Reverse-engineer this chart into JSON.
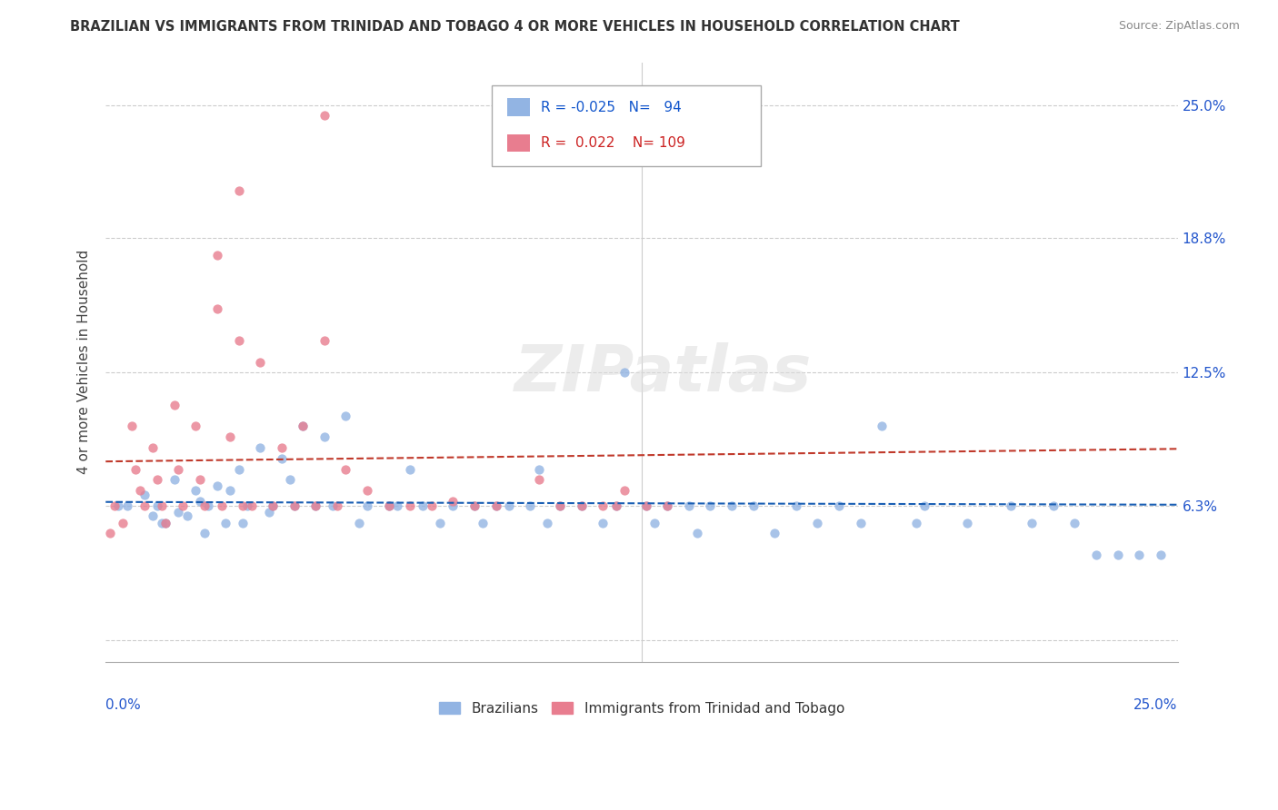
{
  "title": "BRAZILIAN VS IMMIGRANTS FROM TRINIDAD AND TOBAGO 4 OR MORE VEHICLES IN HOUSEHOLD CORRELATION CHART",
  "source": "Source: ZipAtlas.com",
  "ylabel": "4 or more Vehicles in Household",
  "yticks": [
    0.0,
    0.063,
    0.125,
    0.188,
    0.25
  ],
  "ytick_labels": [
    "",
    "6.3%",
    "12.5%",
    "18.8%",
    "25.0%"
  ],
  "xlim": [
    0.0,
    0.25
  ],
  "ylim": [
    -0.01,
    0.27
  ],
  "legend_r_blue": "-0.025",
  "legend_n_blue": "94",
  "legend_r_pink": "0.022",
  "legend_n_pink": "109",
  "blue_color": "#92b4e3",
  "pink_color": "#e87d8f",
  "trend_blue_color": "#1a5fb4",
  "trend_pink_color": "#c0392b",
  "watermark": "ZIPatlas",
  "blue_scatter_x": [
    0.003,
    0.005,
    0.009,
    0.011,
    0.013,
    0.012,
    0.016,
    0.017,
    0.014,
    0.021,
    0.022,
    0.019,
    0.023,
    0.026,
    0.024,
    0.028,
    0.031,
    0.029,
    0.033,
    0.032,
    0.036,
    0.038,
    0.041,
    0.043,
    0.039,
    0.046,
    0.044,
    0.051,
    0.049,
    0.056,
    0.053,
    0.061,
    0.059,
    0.066,
    0.071,
    0.068,
    0.074,
    0.081,
    0.078,
    0.086,
    0.091,
    0.088,
    0.094,
    0.101,
    0.099,
    0.103,
    0.106,
    0.111,
    0.116,
    0.121,
    0.119,
    0.126,
    0.131,
    0.128,
    0.136,
    0.141,
    0.138,
    0.146,
    0.151,
    0.156,
    0.161,
    0.166,
    0.171,
    0.176,
    0.181,
    0.191,
    0.189,
    0.201,
    0.211,
    0.216,
    0.221,
    0.226,
    0.231,
    0.236,
    0.241,
    0.246
  ],
  "blue_scatter_y": [
    0.063,
    0.063,
    0.068,
    0.058,
    0.055,
    0.063,
    0.075,
    0.06,
    0.055,
    0.07,
    0.065,
    0.058,
    0.05,
    0.072,
    0.063,
    0.055,
    0.08,
    0.07,
    0.063,
    0.055,
    0.09,
    0.06,
    0.085,
    0.075,
    0.063,
    0.1,
    0.063,
    0.095,
    0.063,
    0.105,
    0.063,
    0.063,
    0.055,
    0.063,
    0.08,
    0.063,
    0.063,
    0.063,
    0.055,
    0.063,
    0.063,
    0.055,
    0.063,
    0.08,
    0.063,
    0.055,
    0.063,
    0.063,
    0.055,
    0.125,
    0.063,
    0.063,
    0.063,
    0.055,
    0.063,
    0.063,
    0.05,
    0.063,
    0.063,
    0.05,
    0.063,
    0.055,
    0.063,
    0.055,
    0.1,
    0.063,
    0.055,
    0.055,
    0.063,
    0.055,
    0.063,
    0.055,
    0.04,
    0.04,
    0.04,
    0.04
  ],
  "pink_scatter_x": [
    0.002,
    0.004,
    0.001,
    0.006,
    0.007,
    0.008,
    0.009,
    0.011,
    0.012,
    0.013,
    0.014,
    0.016,
    0.017,
    0.018,
    0.021,
    0.022,
    0.023,
    0.026,
    0.027,
    0.031,
    0.029,
    0.032,
    0.036,
    0.034,
    0.041,
    0.039,
    0.046,
    0.044,
    0.051,
    0.049,
    0.056,
    0.054,
    0.061,
    0.066,
    0.071,
    0.076,
    0.081,
    0.086,
    0.091,
    0.101,
    0.106,
    0.111,
    0.116,
    0.121,
    0.119,
    0.126,
    0.131,
    0.051,
    0.026,
    0.031
  ],
  "pink_scatter_y": [
    0.063,
    0.055,
    0.05,
    0.1,
    0.08,
    0.07,
    0.063,
    0.09,
    0.075,
    0.063,
    0.055,
    0.11,
    0.08,
    0.063,
    0.1,
    0.075,
    0.063,
    0.155,
    0.063,
    0.14,
    0.095,
    0.063,
    0.13,
    0.063,
    0.09,
    0.063,
    0.1,
    0.063,
    0.14,
    0.063,
    0.08,
    0.063,
    0.07,
    0.063,
    0.063,
    0.063,
    0.065,
    0.063,
    0.063,
    0.075,
    0.063,
    0.063,
    0.063,
    0.07,
    0.063,
    0.063,
    0.063,
    0.245,
    0.18,
    0.21
  ]
}
